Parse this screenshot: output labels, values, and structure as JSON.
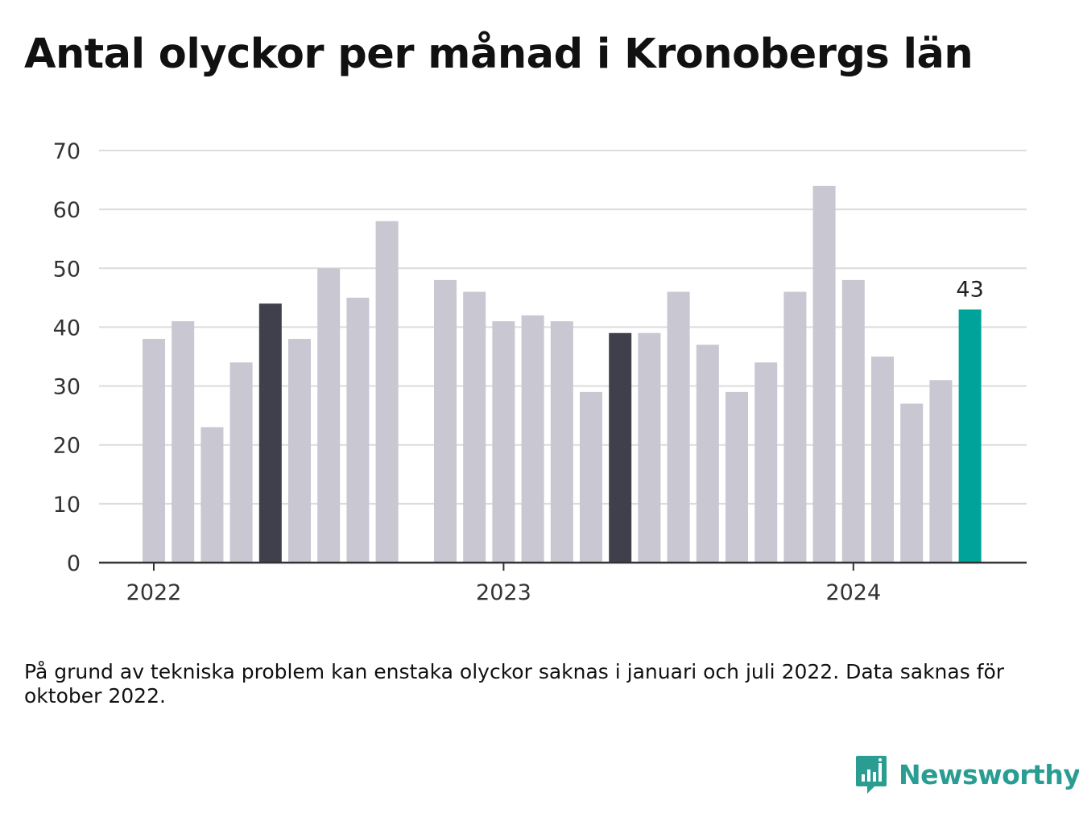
{
  "title": "Antal olyckor per månad i Kronobergs län",
  "chart_data": {
    "type": "bar",
    "title": "Antal olyckor per månad i Kronobergs län",
    "xlabel": "",
    "ylabel": "",
    "ylim": [
      0,
      70
    ],
    "yticks": [
      "0",
      "10",
      "20",
      "30",
      "40",
      "50",
      "60",
      "70"
    ],
    "xtick_labels": [
      {
        "label": "2022",
        "category": "2022-01"
      },
      {
        "label": "2023",
        "category": "2023-01"
      },
      {
        "label": "2024",
        "category": "2024-01"
      }
    ],
    "categories": [
      "2022-01",
      "2022-02",
      "2022-03",
      "2022-04",
      "2022-05",
      "2022-06",
      "2022-07",
      "2022-08",
      "2022-09",
      "2022-10",
      "2022-11",
      "2022-12",
      "2023-01",
      "2023-02",
      "2023-03",
      "2023-04",
      "2023-05",
      "2023-06",
      "2023-07",
      "2023-08",
      "2023-09",
      "2023-10",
      "2023-11",
      "2023-12",
      "2024-01",
      "2024-02",
      "2024-03",
      "2024-04",
      "2024-05"
    ],
    "values": [
      38,
      41,
      23,
      34,
      44,
      38,
      50,
      45,
      58,
      null,
      48,
      46,
      41,
      42,
      41,
      29,
      39,
      39,
      46,
      37,
      29,
      34,
      46,
      64,
      48,
      35,
      27,
      31,
      43
    ],
    "highlight": {
      "2022-05": "#403f4c",
      "2023-05": "#403f4c",
      "2024-05": "#00a39a"
    },
    "default_color": "#c8c7d2",
    "grid": true,
    "data_labels": [
      {
        "category": "2024-05",
        "text": "43"
      }
    ]
  },
  "footnote": "På grund av tekniska problem kan enstaka olyckor saknas i januari och juli 2022. Data saknas för oktober 2022.",
  "brand": {
    "name": "Newsworthy",
    "icon": "bar-chart-speech-bubble-icon",
    "color": "#2a9d93"
  }
}
